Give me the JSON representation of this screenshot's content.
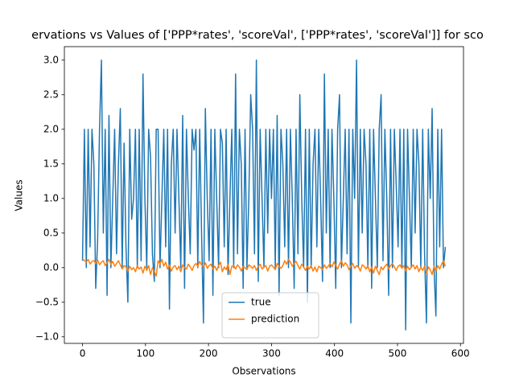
{
  "chart_data": {
    "type": "line",
    "title": "ervations vs Values of ['PPP*rates', 'scoreVal', ['PPP*rates', 'scoreVal']] for sco",
    "x_label": "Observations",
    "y_label": "Values",
    "x": [
      0,
      3,
      6,
      9,
      12,
      15,
      18,
      21,
      24,
      27,
      30,
      33,
      36,
      39,
      42,
      45,
      48,
      51,
      54,
      57,
      60,
      63,
      66,
      69,
      72,
      75,
      78,
      81,
      84,
      87,
      90,
      93,
      96,
      99,
      102,
      105,
      108,
      111,
      114,
      117,
      120,
      123,
      126,
      129,
      132,
      135,
      138,
      141,
      144,
      147,
      150,
      153,
      156,
      159,
      162,
      165,
      168,
      171,
      174,
      177,
      180,
      183,
      186,
      189,
      192,
      195,
      198,
      201,
      204,
      207,
      210,
      213,
      216,
      219,
      222,
      225,
      228,
      231,
      234,
      237,
      240,
      243,
      246,
      249,
      252,
      255,
      258,
      261,
      264,
      267,
      270,
      273,
      276,
      279,
      282,
      285,
      288,
      291,
      294,
      297,
      300,
      303,
      306,
      309,
      312,
      315,
      318,
      321,
      324,
      327,
      330,
      333,
      336,
      339,
      342,
      345,
      348,
      351,
      354,
      357,
      360,
      363,
      366,
      369,
      372,
      375,
      378,
      381,
      384,
      387,
      390,
      393,
      396,
      399,
      402,
      405,
      408,
      411,
      414,
      417,
      420,
      423,
      426,
      429,
      432,
      435,
      438,
      441,
      444,
      447,
      450,
      453,
      456,
      459,
      462,
      465,
      468,
      471,
      474,
      477,
      480,
      483,
      486,
      489,
      492,
      495,
      498,
      501,
      504,
      507,
      510,
      513,
      516,
      519,
      522,
      525,
      528,
      531,
      534,
      537,
      540,
      543,
      546,
      549,
      552,
      555,
      558,
      561,
      564,
      567,
      570,
      573,
      576
    ],
    "series": [
      {
        "name": "true",
        "color": "#1f77b4",
        "values": [
          0.1,
          2,
          0,
          2,
          0.3,
          2,
          1.5,
          -0.3,
          0.4,
          2,
          3,
          0.5,
          2,
          -0.4,
          2.2,
          0,
          1,
          2,
          0.2,
          1.5,
          2.3,
          0,
          1.8,
          0.3,
          -0.5,
          2,
          0.7,
          1,
          2,
          0,
          2,
          0.1,
          2.8,
          1,
          0,
          2,
          1.6,
          0.2,
          -0.2,
          2,
          2,
          0,
          1,
          2,
          0.3,
          2,
          -0.6,
          1.5,
          2,
          0.5,
          2,
          1,
          0,
          2.2,
          -0.3,
          2,
          1,
          0.2,
          2,
          1.7,
          2,
          0,
          2,
          0.5,
          -0.8,
          2.3,
          1,
          0.1,
          2,
          -0.4,
          2,
          1,
          0,
          2,
          1.8,
          0.3,
          2,
          -0.1,
          1,
          2,
          0,
          2.8,
          0.2,
          2,
          1.5,
          -0.3,
          2,
          0,
          1,
          2.5,
          2,
          0.2,
          3,
          -0.2,
          2,
          1,
          0,
          2,
          0.5,
          2,
          1,
          2,
          0,
          2.2,
          -0.4,
          2,
          1.5,
          0.3,
          2,
          0,
          2,
          1,
          -0.3,
          2,
          0.2,
          2.5,
          1,
          0,
          2,
          -0.5,
          2,
          0,
          1.5,
          2,
          0.3,
          2,
          1,
          -0.2,
          2.8,
          0.5,
          2,
          0,
          2,
          1,
          -0.3,
          2,
          2.5,
          0,
          1,
          2,
          0.2,
          2,
          -0.8,
          2,
          1,
          3,
          0,
          2,
          0.5,
          2,
          1.5,
          0,
          2,
          -0.3,
          2,
          1,
          0,
          2,
          2.5,
          0.1,
          2,
          1,
          -0.4,
          2,
          0,
          2,
          1.2,
          0.3,
          2,
          0,
          2,
          -0.9,
          2,
          1,
          0,
          2,
          0.5,
          2,
          1.5,
          0,
          2,
          0.2,
          -0.8,
          2,
          1,
          2.3,
          0,
          -0.7,
          2,
          0.3,
          2,
          0,
          0.3
        ]
      },
      {
        "name": "prediction",
        "color": "#ff7f0e",
        "values": [
          0.13,
          0.1,
          0.08,
          0.12,
          0.05,
          0.09,
          0.1,
          0.06,
          0.11,
          0.04,
          0.08,
          0.1,
          0.03,
          0.07,
          0.12,
          0.05,
          0.09,
          0.02,
          0.06,
          0.1,
          0.04,
          -0.02,
          0.03,
          0.01,
          -0.05,
          0.02,
          -0.03,
          0,
          -0.06,
          0.03,
          -0.02,
          0.01,
          -0.08,
          0.02,
          -0.04,
          0.03,
          -0.1,
          0,
          -0.06,
          -0.12,
          0.1,
          0.05,
          0.12,
          0.02,
          0.08,
          -0.02,
          0.04,
          -0.05,
          0.01,
          0.03,
          -0.03,
          0.02,
          -0.06,
          0.04,
          0,
          -0.02,
          0.05,
          0.01,
          -0.04,
          0.03,
          0.06,
          0.02,
          0.09,
          0.04,
          0.01,
          0.07,
          -0.01,
          0.03,
          0.05,
          -0.02,
          0.02,
          -0.04,
          0.03,
          0.08,
          -0.06,
          0.01,
          -0.03,
          0.05,
          -0.1,
          0.02,
          0.03,
          -0.02,
          0.04,
          0.01,
          -0.05,
          0.02,
          0,
          -0.03,
          0.04,
          0.02,
          -0.01,
          0.03,
          -0.04,
          0.02,
          0.05,
          -0.02,
          0.01,
          0.03,
          -0.05,
          0.02,
          0.04,
          0.01,
          -0.03,
          0.06,
          0.02,
          -0.01,
          0.03,
          0.1,
          0.05,
          0.12,
          0.08,
          0.02,
          0.06,
          0.09,
          0.03,
          -0.02,
          0.05,
          0.01,
          -0.04,
          0.02,
          -0.02,
          0.03,
          -0.05,
          0.01,
          -0.06,
          0.02,
          0,
          -0.03,
          0.04,
          -0.01,
          0.02,
          0.06,
          0.01,
          0.08,
          0.03,
          -0.02,
          0.05,
          0.1,
          0.02,
          0.07,
          0.04,
          -0.03,
          0.02,
          0.06,
          -0.01,
          0.03,
          0.01,
          -0.05,
          0.04,
          0.02,
          -0.02,
          0.03,
          -0.06,
          0.01,
          -0.08,
          0.02,
          -0.04,
          -0.1,
          0.01,
          -0.03,
          0.02,
          0.05,
          -0.02,
          0.03,
          0.06,
          0.01,
          -0.04,
          0.02,
          0.04,
          -0.01,
          0.03,
          -0.05,
          0.02,
          -0.03,
          0.01,
          0.04,
          -0.02,
          0.03,
          -0.06,
          0.01,
          -0.04,
          0.02,
          -0.08,
          0.01,
          -0.03,
          -0.1,
          0.02,
          -0.05,
          0.03,
          -0.02,
          0.05,
          0.1,
          0.02
        ]
      }
    ],
    "xlim": [
      -28.8,
      604.8
    ],
    "ylim": [
      -1.095,
      3.195
    ],
    "xticks": [
      0,
      100,
      200,
      300,
      400,
      500,
      600
    ],
    "yticks": [
      {
        "value": -1,
        "label": "−1.0"
      },
      {
        "value": -0.5,
        "label": "−0.5"
      },
      {
        "value": 0,
        "label": "0.0"
      },
      {
        "value": 0.5,
        "label": "0.5"
      },
      {
        "value": 1,
        "label": "1.0"
      },
      {
        "value": 1.5,
        "label": "1.5"
      },
      {
        "value": 2,
        "label": "2.0"
      },
      {
        "value": 2.5,
        "label": "2.5"
      },
      {
        "value": 3,
        "label": "3.0"
      }
    ],
    "legend": "lower center"
  }
}
